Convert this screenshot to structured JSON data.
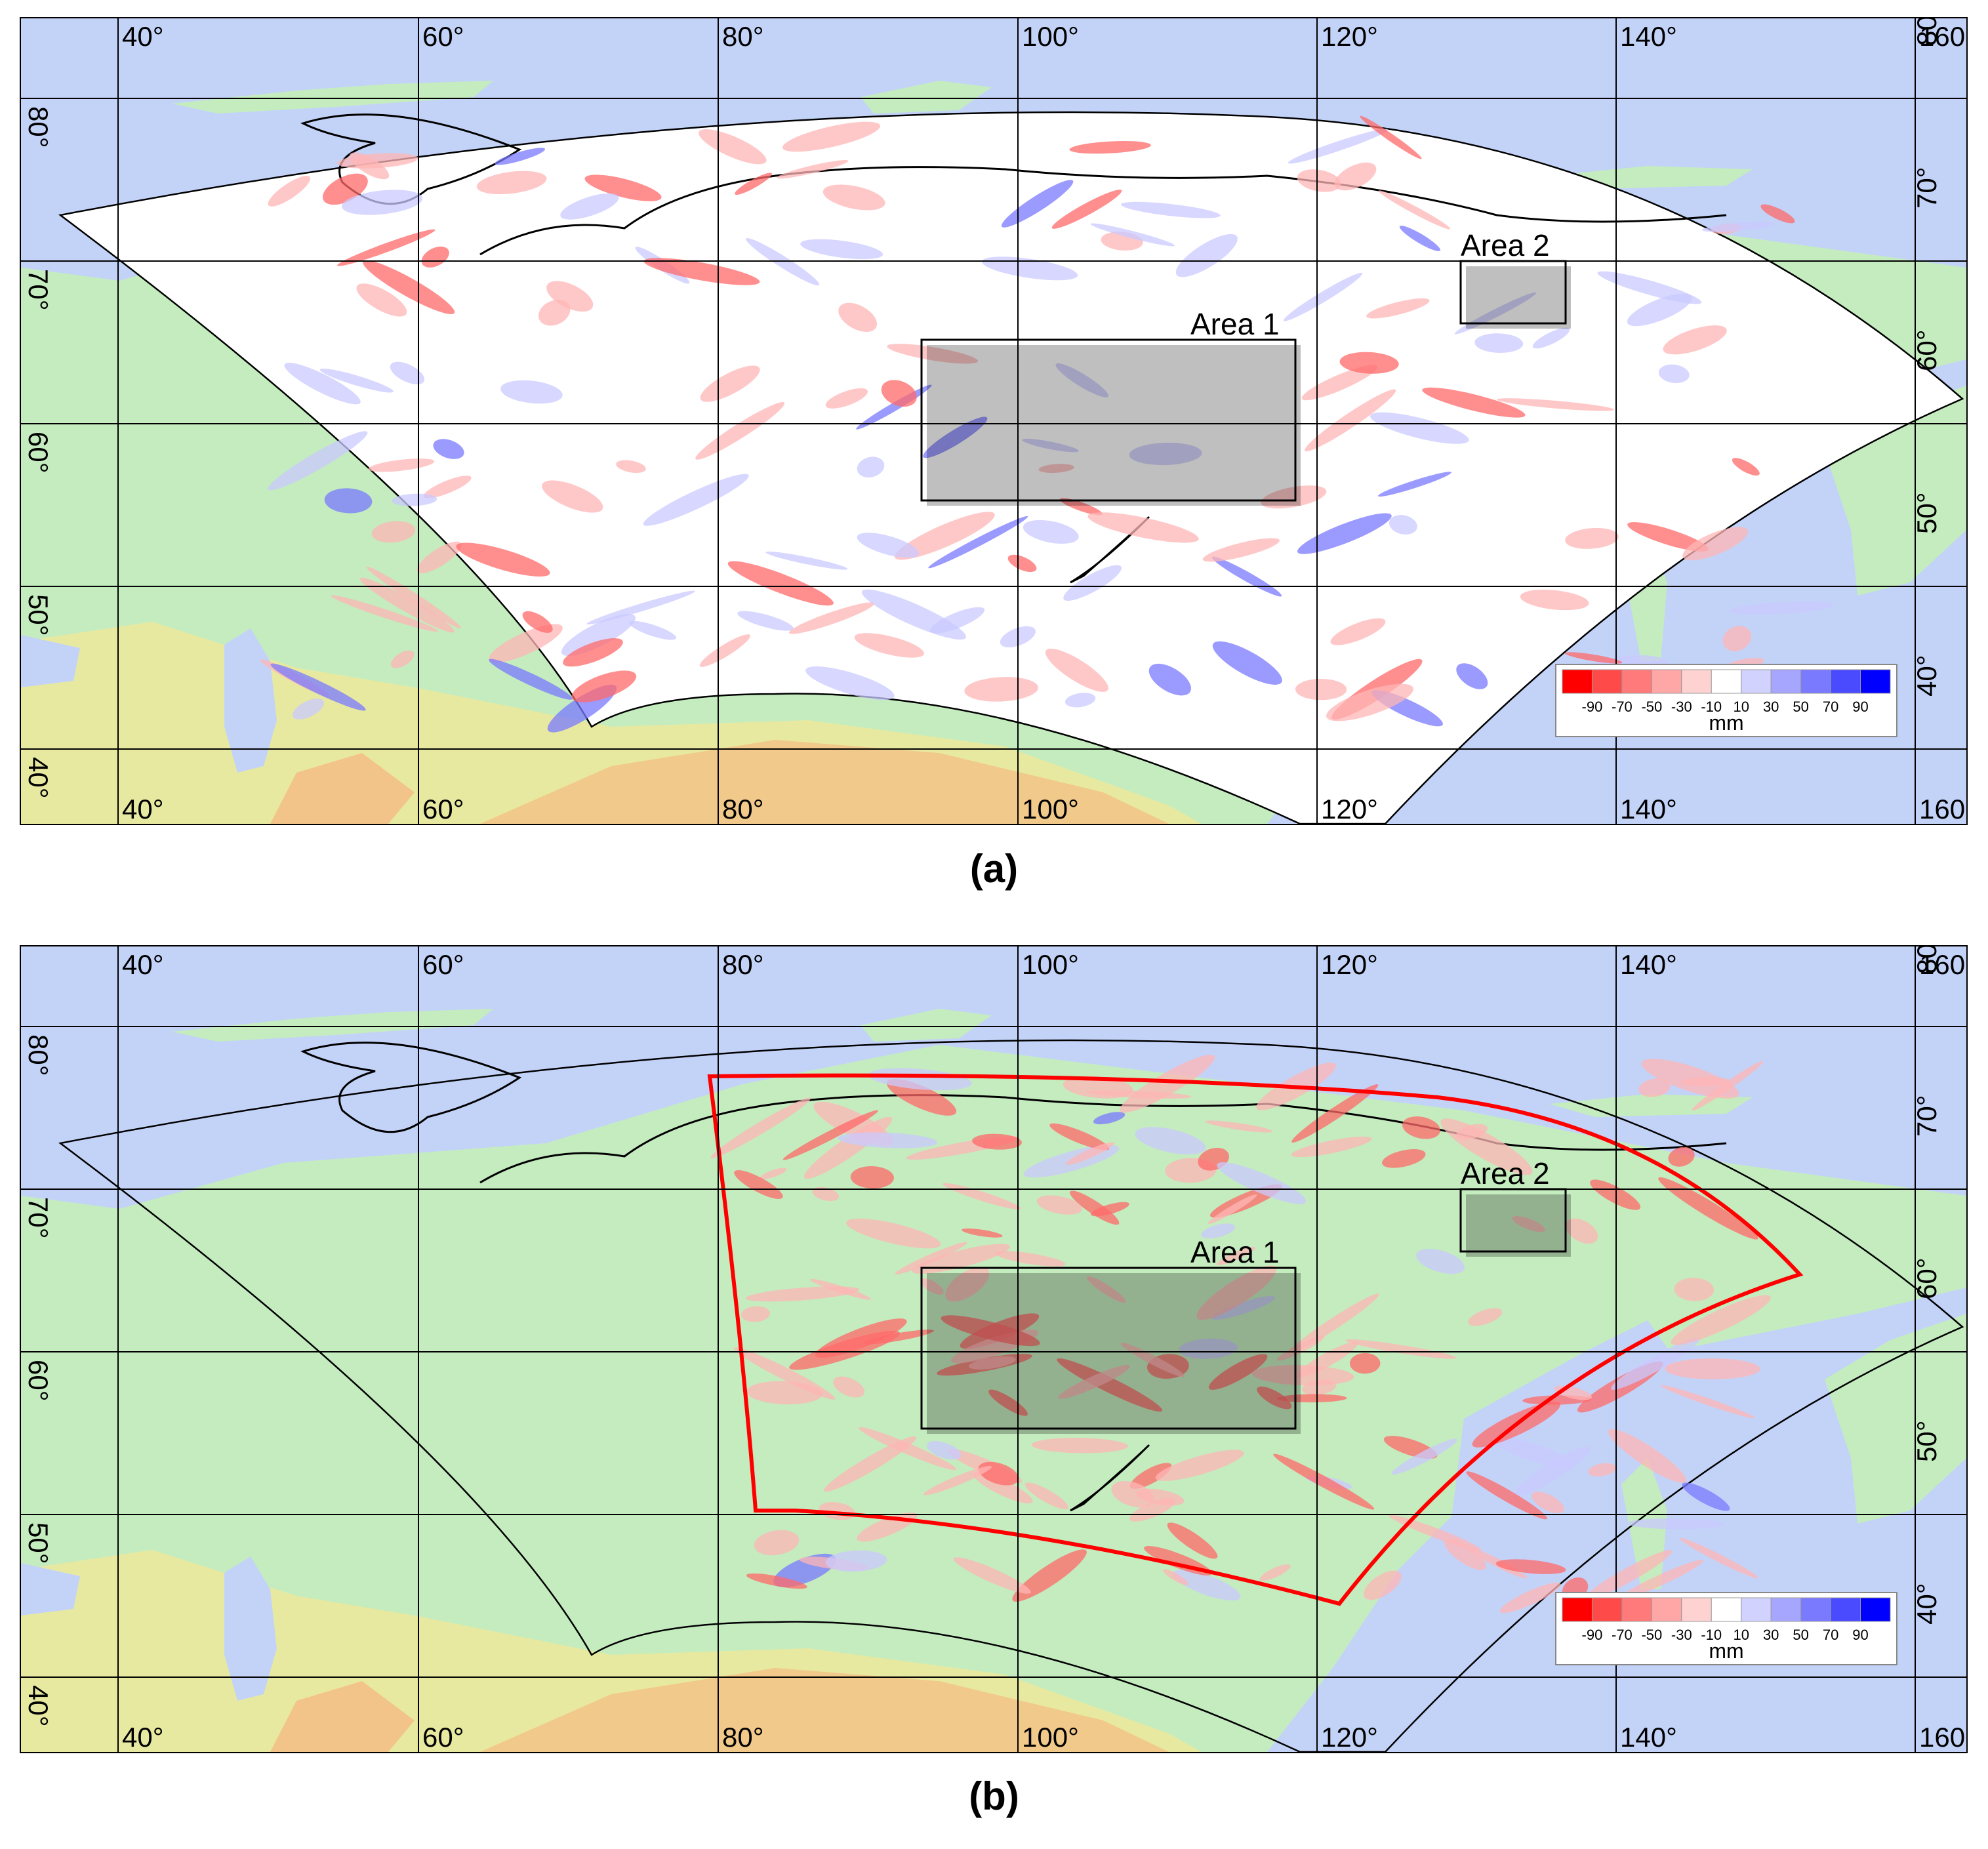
{
  "panels": [
    {
      "id": "a",
      "caption": "(a)",
      "areas": [
        {
          "name": "Area 1",
          "label": "Area 1"
        },
        {
          "name": "Area 2",
          "label": "Area 2"
        }
      ],
      "has_red_subdomain": false
    },
    {
      "id": "b",
      "caption": "(b)",
      "areas": [
        {
          "name": "Area 1",
          "label": "Area 1"
        },
        {
          "name": "Area 2",
          "label": "Area 2"
        }
      ],
      "has_red_subdomain": true
    }
  ],
  "map": {
    "lon_labels": [
      "40°",
      "60°",
      "80°",
      "100°",
      "120°",
      "140°",
      "160°"
    ],
    "lat_labels": [
      "80°",
      "70°",
      "60°",
      "50°",
      "40°"
    ]
  },
  "legend": {
    "tick_labels": [
      "-90",
      "-70",
      "-50",
      "-30",
      "-10",
      "10",
      "30",
      "50",
      "70",
      "90"
    ],
    "unit": "mm",
    "colors": [
      "#ff0000",
      "#ff4a4a",
      "#ff7a7a",
      "#ffa6a6",
      "#ffd2d2",
      "#ffffff",
      "#d2d2ff",
      "#a6a6ff",
      "#7a7aff",
      "#4a4aff",
      "#0000ff"
    ]
  },
  "colors": {
    "ocean": "#c3d3f8",
    "land": "#c4ecbf",
    "domain_fill": "#ffffff",
    "subdomain_outline": "#ff0000",
    "frame": "#000000"
  }
}
